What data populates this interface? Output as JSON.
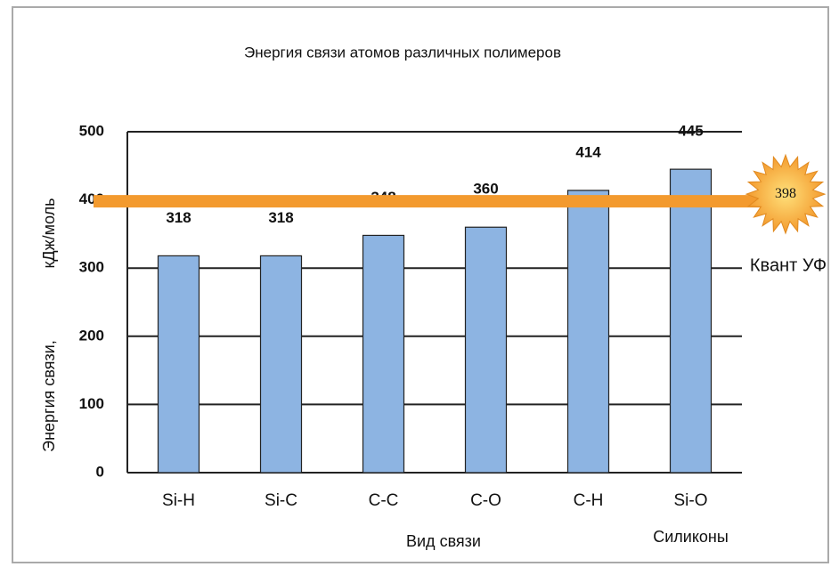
{
  "chart_data": {
    "type": "bar",
    "title": "Энергия связи атомов различных полимеров",
    "xlabel": "Вид связи",
    "ylabel": [
      "Энергия связи,",
      "кДж/моль"
    ],
    "categories": [
      "Si-H",
      "Si-C",
      "C-C",
      "C-O",
      "C-H",
      "Si-O"
    ],
    "values": [
      318,
      318,
      348,
      360,
      414,
      445
    ],
    "color": "#8db4e2",
    "ylim": [
      0,
      500
    ],
    "yticks": [
      0,
      100,
      200,
      300,
      400,
      500
    ],
    "grid": true,
    "annotation": "Силиконы",
    "reference_line": {
      "value": 398,
      "label": "Квант УФ",
      "color": "#f39a2e"
    }
  }
}
